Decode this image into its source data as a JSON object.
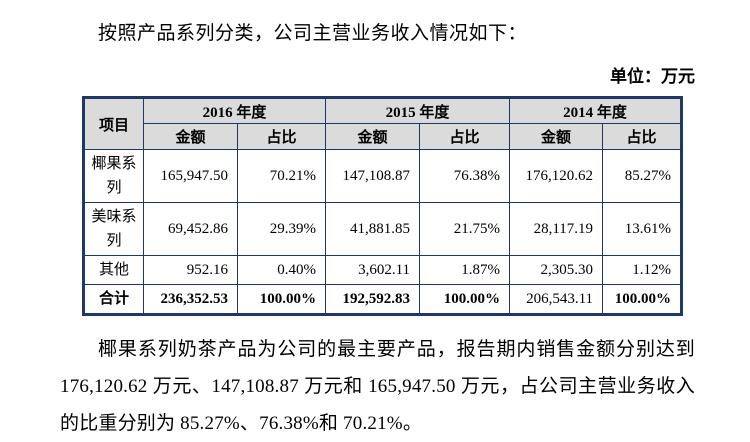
{
  "doc": {
    "intro": "按照产品系列分类，公司主营业务收入情况如下：",
    "unit_label": "单位：万元",
    "footer": "椰果系列奶茶产品为公司的最主要产品，报告期内销售金额分别达到 176,120.62 万元、147,108.87 万元和 165,947.50 万元，占公司主营业务收入的比重分别为 85.27%、76.38%和 70.21%。"
  },
  "table": {
    "corner_header": "项目",
    "years": [
      "2016 年度",
      "2015 年度",
      "2014 年度"
    ],
    "amount_header": "金额",
    "ratio_header": "占比",
    "rows": [
      {
        "label": "椰果系列",
        "cells": [
          "165,947.50",
          "70.21%",
          "147,108.87",
          "76.38%",
          "176,120.62",
          "85.27%"
        ]
      },
      {
        "label": "美味系列",
        "cells": [
          "69,452.86",
          "29.39%",
          "41,881.85",
          "21.75%",
          "28,117.19",
          "13.61%"
        ]
      },
      {
        "label": "其他",
        "cells": [
          "952.16",
          "0.40%",
          "3,602.11",
          "1.87%",
          "2,305.30",
          "1.12%"
        ]
      },
      {
        "label": "合计",
        "cells": [
          "236,352.53",
          "100.00%",
          "192,592.83",
          "100.00%",
          "206,543.11",
          "100.00%"
        ]
      }
    ],
    "colors": {
      "border": "#1F3864",
      "header_bg": "#DBDBDB"
    }
  }
}
